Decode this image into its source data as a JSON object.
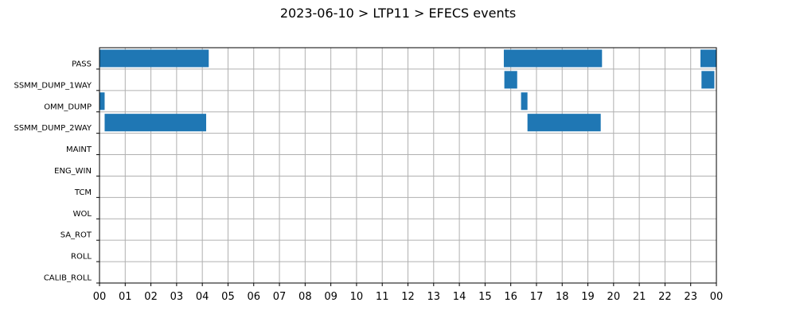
{
  "chart_data": {
    "type": "bar",
    "orientation": "horizontal-timeline",
    "title": "2023-06-10 > LTP11 > EFECS events",
    "xlabel": "",
    "ylabel": "",
    "xlim": [
      0,
      24
    ],
    "x_ticks": [
      "00",
      "01",
      "02",
      "03",
      "04",
      "05",
      "06",
      "07",
      "08",
      "09",
      "10",
      "11",
      "12",
      "13",
      "14",
      "15",
      "16",
      "17",
      "18",
      "19",
      "20",
      "21",
      "22",
      "23",
      "00"
    ],
    "categories": [
      "PASS",
      "SSMM_DUMP_1WAY",
      "OMM_DUMP",
      "SSMM_DUMP_2WAY",
      "MAINT",
      "ENG_WIN",
      "TCM",
      "WOL",
      "SA_ROT",
      "ROLL",
      "CALIB_ROLL"
    ],
    "grid": true,
    "bar_color": "#1f77b4",
    "events": [
      {
        "category": "PASS",
        "start": 0.0,
        "end": 4.25
      },
      {
        "category": "PASS",
        "start": 15.73,
        "end": 19.55
      },
      {
        "category": "PASS",
        "start": 23.38,
        "end": 24.0
      },
      {
        "category": "SSMM_DUMP_1WAY",
        "start": 15.75,
        "end": 16.25
      },
      {
        "category": "SSMM_DUMP_1WAY",
        "start": 23.42,
        "end": 23.92
      },
      {
        "category": "OMM_DUMP",
        "start": 0.0,
        "end": 0.2
      },
      {
        "category": "OMM_DUMP",
        "start": 16.4,
        "end": 16.65
      },
      {
        "category": "SSMM_DUMP_2WAY",
        "start": 0.2,
        "end": 4.15
      },
      {
        "category": "SSMM_DUMP_2WAY",
        "start": 16.65,
        "end": 19.5
      }
    ]
  }
}
